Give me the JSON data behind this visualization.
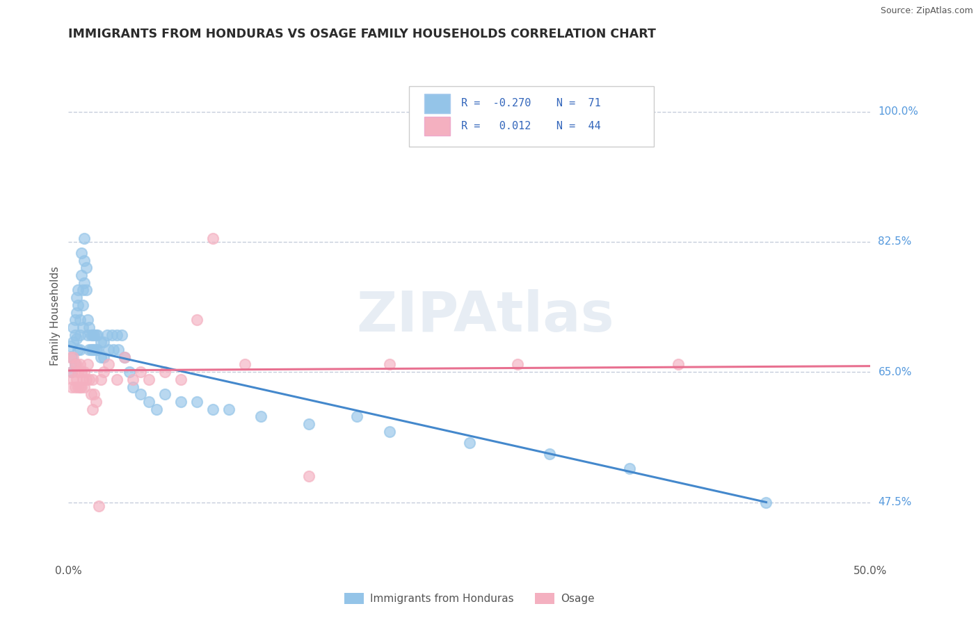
{
  "title": "IMMIGRANTS FROM HONDURAS VS OSAGE FAMILY HOUSEHOLDS CORRELATION CHART",
  "source": "Source: ZipAtlas.com",
  "ylabel": "Family Households",
  "watermark": "ZIPAtlas",
  "legend_labels": [
    "Immigrants from Honduras",
    "Osage"
  ],
  "R_blue": -0.27,
  "N_blue": 71,
  "R_pink": 0.012,
  "N_pink": 44,
  "xlim": [
    0.0,
    0.5
  ],
  "ylim": [
    0.4,
    1.05
  ],
  "title_color": "#2b2b2b",
  "axis_color": "#555555",
  "grid_color": "#c0c8d8",
  "blue_color": "#94c4e8",
  "pink_color": "#f4b0c0",
  "blue_line_color": "#4488cc",
  "pink_line_color": "#e87090",
  "source_color": "#555555",
  "right_label_color": "#5599dd",
  "right_labels": {
    "1.000": "100.0%",
    "0.825": "82.5%",
    "0.650": "65.0%",
    "0.475": "47.5%"
  },
  "gridline_y": [
    1.0,
    0.825,
    0.65,
    0.475
  ],
  "blue_line_x": [
    0.0,
    0.435
  ],
  "blue_line_y": [
    0.685,
    0.475
  ],
  "pink_line_x": [
    0.0,
    0.5
  ],
  "pink_line_y": [
    0.652,
    0.658
  ],
  "blue_points": [
    [
      0.001,
      0.685
    ],
    [
      0.002,
      0.67
    ],
    [
      0.002,
      0.65
    ],
    [
      0.003,
      0.69
    ],
    [
      0.003,
      0.71
    ],
    [
      0.004,
      0.66
    ],
    [
      0.004,
      0.7
    ],
    [
      0.004,
      0.72
    ],
    [
      0.005,
      0.75
    ],
    [
      0.005,
      0.73
    ],
    [
      0.005,
      0.695
    ],
    [
      0.006,
      0.68
    ],
    [
      0.006,
      0.76
    ],
    [
      0.006,
      0.74
    ],
    [
      0.007,
      0.72
    ],
    [
      0.007,
      0.7
    ],
    [
      0.007,
      0.68
    ],
    [
      0.008,
      0.81
    ],
    [
      0.008,
      0.78
    ],
    [
      0.009,
      0.76
    ],
    [
      0.009,
      0.74
    ],
    [
      0.009,
      0.71
    ],
    [
      0.01,
      0.83
    ],
    [
      0.01,
      0.8
    ],
    [
      0.01,
      0.77
    ],
    [
      0.011,
      0.79
    ],
    [
      0.011,
      0.76
    ],
    [
      0.012,
      0.72
    ],
    [
      0.012,
      0.7
    ],
    [
      0.013,
      0.68
    ],
    [
      0.013,
      0.71
    ],
    [
      0.014,
      0.7
    ],
    [
      0.014,
      0.68
    ],
    [
      0.015,
      0.7
    ],
    [
      0.015,
      0.68
    ],
    [
      0.016,
      0.7
    ],
    [
      0.016,
      0.68
    ],
    [
      0.017,
      0.7
    ],
    [
      0.017,
      0.68
    ],
    [
      0.018,
      0.7
    ],
    [
      0.018,
      0.68
    ],
    [
      0.02,
      0.69
    ],
    [
      0.02,
      0.67
    ],
    [
      0.022,
      0.69
    ],
    [
      0.022,
      0.67
    ],
    [
      0.024,
      0.7
    ],
    [
      0.025,
      0.68
    ],
    [
      0.027,
      0.7
    ],
    [
      0.028,
      0.68
    ],
    [
      0.03,
      0.7
    ],
    [
      0.031,
      0.68
    ],
    [
      0.033,
      0.7
    ],
    [
      0.035,
      0.67
    ],
    [
      0.038,
      0.65
    ],
    [
      0.04,
      0.63
    ],
    [
      0.045,
      0.62
    ],
    [
      0.05,
      0.61
    ],
    [
      0.055,
      0.6
    ],
    [
      0.06,
      0.62
    ],
    [
      0.07,
      0.61
    ],
    [
      0.08,
      0.61
    ],
    [
      0.09,
      0.6
    ],
    [
      0.1,
      0.6
    ],
    [
      0.12,
      0.59
    ],
    [
      0.15,
      0.58
    ],
    [
      0.18,
      0.59
    ],
    [
      0.2,
      0.57
    ],
    [
      0.25,
      0.555
    ],
    [
      0.3,
      0.54
    ],
    [
      0.35,
      0.52
    ],
    [
      0.435,
      0.475
    ]
  ],
  "pink_points": [
    [
      0.001,
      0.67
    ],
    [
      0.002,
      0.65
    ],
    [
      0.002,
      0.63
    ],
    [
      0.003,
      0.67
    ],
    [
      0.003,
      0.64
    ],
    [
      0.004,
      0.66
    ],
    [
      0.004,
      0.63
    ],
    [
      0.005,
      0.64
    ],
    [
      0.005,
      0.66
    ],
    [
      0.006,
      0.65
    ],
    [
      0.006,
      0.63
    ],
    [
      0.007,
      0.66
    ],
    [
      0.007,
      0.63
    ],
    [
      0.008,
      0.65
    ],
    [
      0.008,
      0.63
    ],
    [
      0.009,
      0.64
    ],
    [
      0.01,
      0.65
    ],
    [
      0.01,
      0.63
    ],
    [
      0.011,
      0.64
    ],
    [
      0.012,
      0.66
    ],
    [
      0.013,
      0.64
    ],
    [
      0.014,
      0.62
    ],
    [
      0.015,
      0.64
    ],
    [
      0.015,
      0.6
    ],
    [
      0.016,
      0.62
    ],
    [
      0.017,
      0.61
    ],
    [
      0.019,
      0.47
    ],
    [
      0.02,
      0.64
    ],
    [
      0.022,
      0.65
    ],
    [
      0.025,
      0.66
    ],
    [
      0.03,
      0.64
    ],
    [
      0.035,
      0.67
    ],
    [
      0.04,
      0.64
    ],
    [
      0.045,
      0.65
    ],
    [
      0.05,
      0.64
    ],
    [
      0.06,
      0.65
    ],
    [
      0.07,
      0.64
    ],
    [
      0.08,
      0.72
    ],
    [
      0.09,
      0.83
    ],
    [
      0.11,
      0.66
    ],
    [
      0.15,
      0.51
    ],
    [
      0.2,
      0.66
    ],
    [
      0.28,
      0.66
    ],
    [
      0.38,
      0.66
    ]
  ]
}
